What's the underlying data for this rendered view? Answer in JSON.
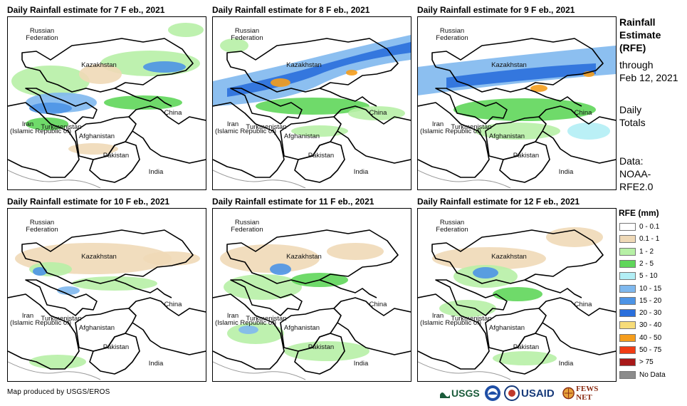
{
  "panels": [
    {
      "title": "Daily Rainfall estimate for 7 F eb., 2021"
    },
    {
      "title": "Daily Rainfall estimate for 8 F eb., 2021"
    },
    {
      "title": "Daily Rainfall estimate for 9 F eb., 2021"
    },
    {
      "title": "Daily Rainfall estimate for 10 F eb., 2021"
    },
    {
      "title": "Daily Rainfall estimate for 11 F eb., 2021"
    },
    {
      "title": "Daily Rainfall estimate for 12 F eb., 2021"
    }
  ],
  "map_labels": {
    "russia_line1": "Russian",
    "russia_line2": "Federation",
    "kazakhstan": "Kazakhstan",
    "turkmenistan": "Turkmenistan",
    "iran_line1": "Iran",
    "iran_line2": "(Islamic Republic of)",
    "afghanistan": "Afghanistan",
    "pakistan": "Pakistan",
    "china": "China",
    "india": "India"
  },
  "side_info": {
    "line1": "Rainfall",
    "line2": "Estimate",
    "line3": "(RFE)",
    "line4": "through",
    "line5": "Feb 12, 2021",
    "totals1": "Daily",
    "totals2": "Totals",
    "data1": "Data:",
    "data2": "NOAA-",
    "data3": "RFE2.0"
  },
  "legend": {
    "title": "RFE (mm)",
    "items": [
      {
        "label": "0 - 0.1",
        "color": "#ffffff"
      },
      {
        "label": "0.1 - 1",
        "color": "#efd9b7"
      },
      {
        "label": "1 - 2",
        "color": "#b7f0a6"
      },
      {
        "label": "2 - 5",
        "color": "#5fd65a"
      },
      {
        "label": "5 - 10",
        "color": "#b2eef5"
      },
      {
        "label": "10 - 15",
        "color": "#7fb8ee"
      },
      {
        "label": "15 - 20",
        "color": "#4d94e6"
      },
      {
        "label": "20 - 30",
        "color": "#2a6fdc"
      },
      {
        "label": "30 - 40",
        "color": "#f7dc78"
      },
      {
        "label": "40 - 50",
        "color": "#f59d1c"
      },
      {
        "label": "50 - 75",
        "color": "#f03c14"
      },
      {
        "label": "> 75",
        "color": "#a81818"
      },
      {
        "label": "No Data",
        "color": "#8c8c8c"
      }
    ]
  },
  "credit": "Map produced by USGS/EROS",
  "logos": {
    "usgs": "USGS",
    "usaid": "USAID",
    "fewsnet": "FEWS NET"
  }
}
